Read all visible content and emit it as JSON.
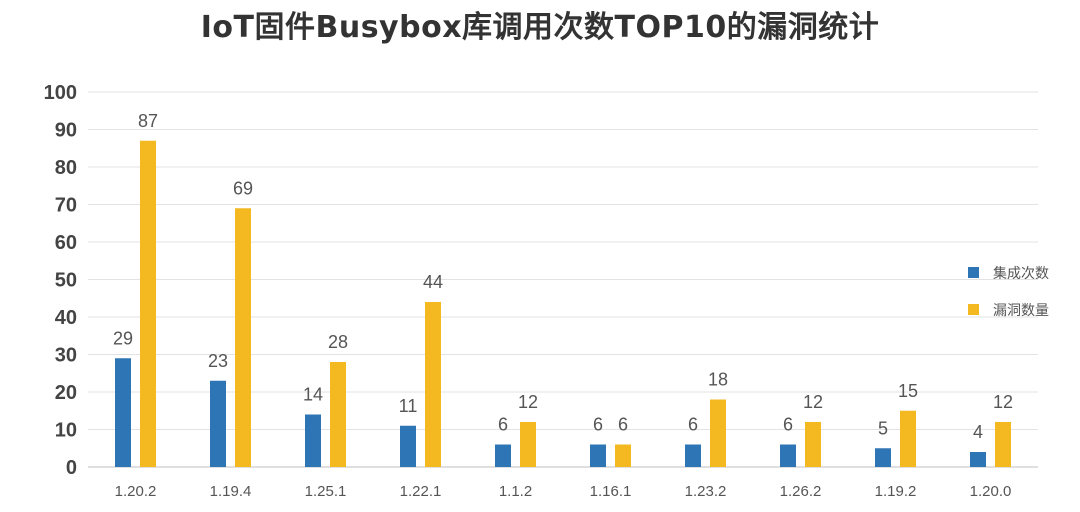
{
  "chart_data": {
    "type": "bar",
    "title": "IoT固件Busybox库调用次数TOP10的漏洞统计",
    "categories": [
      "1.20.2",
      "1.19.4",
      "1.25.1",
      "1.22.1",
      "1.1.2",
      "1.16.1",
      "1.23.2",
      "1.26.2",
      "1.19.2",
      "1.20.0"
    ],
    "series": [
      {
        "name": "集成次数",
        "color": "#2E75B6",
        "values": [
          29,
          23,
          14,
          11,
          6,
          6,
          6,
          6,
          5,
          4
        ]
      },
      {
        "name": "漏洞数量",
        "color": "#F4B820",
        "values": [
          87,
          69,
          28,
          44,
          12,
          6,
          18,
          12,
          15,
          12
        ]
      }
    ],
    "yticks": [
      0,
      10,
      20,
      30,
      40,
      50,
      60,
      70,
      80,
      90,
      100
    ],
    "ylim": [
      0,
      100
    ],
    "grid": true,
    "legend_position": "right"
  }
}
